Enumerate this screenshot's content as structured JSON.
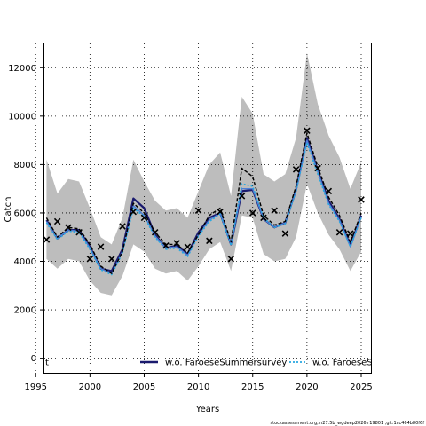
{
  "chart_data": {
    "type": "line",
    "title": "",
    "xlabel": "Years",
    "ylabel": "Catch",
    "xlim": [
      1995.8,
      2025.9
    ],
    "ylim": [
      -600,
      13000
    ],
    "x_ticks": [
      "1995",
      "2000",
      "2005",
      "2010",
      "2015",
      "2020",
      "2025"
    ],
    "y_ticks": [
      "0",
      "2000",
      "4000",
      "6000",
      "8000",
      "10000",
      "12000"
    ],
    "grid": true,
    "legend_position": "bottom",
    "legend": [
      {
        "label": "t",
        "color": "#000000",
        "style": "solid"
      },
      {
        "label": "w.o. FaroeseSummersurvey",
        "color": "#1a1a6e",
        "style": "solid"
      },
      {
        "label": "w.o. FaroeseSp",
        "color": "#29a8e0",
        "style": "dotted"
      }
    ],
    "x": [
      1996,
      1997,
      1998,
      1999,
      2000,
      2001,
      2002,
      2003,
      2004,
      2005,
      2006,
      2007,
      2008,
      2009,
      2010,
      2011,
      2012,
      2013,
      2014,
      2015,
      2016,
      2017,
      2018,
      2019,
      2020,
      2021,
      2022,
      2023,
      2024,
      2025
    ],
    "band": {
      "upper": [
        8200,
        6800,
        7400,
        7300,
        6200,
        5000,
        4700,
        5800,
        8200,
        7300,
        6500,
        6100,
        6200,
        5800,
        6900,
        8000,
        8500,
        6700,
        10800,
        10100,
        7600,
        7300,
        7600,
        9100,
        12600,
        10500,
        9200,
        8300,
        7000,
        8100
      ],
      "lower": [
        4100,
        3700,
        4100,
        4000,
        3200,
        2700,
        2600,
        3400,
        4700,
        4400,
        3700,
        3500,
        3600,
        3200,
        3800,
        4500,
        4800,
        3600,
        5900,
        5800,
        4300,
        4000,
        4100,
        5000,
        7200,
        6000,
        5100,
        4500,
        3600,
        4400
      ]
    },
    "series": [
      {
        "name": "",
        "color": "#000000",
        "style": "dashed",
        "values": [
          5800,
          5000,
          5400,
          5350,
          4700,
          3800,
          3500,
          4400,
          6400,
          6000,
          5200,
          4700,
          4700,
          4350,
          5100,
          5900,
          6200,
          4800,
          7850,
          7500,
          5900,
          5500,
          5650,
          7100,
          9300,
          7900,
          6650,
          5900,
          4800,
          6000
        ]
      },
      {
        "name": "w.o. FaroeseSummersurvey",
        "color": "#1a1a6e",
        "style": "solid",
        "values": [
          5700,
          4950,
          5300,
          5300,
          4600,
          3700,
          3600,
          4500,
          6600,
          6200,
          5100,
          4550,
          4650,
          4300,
          5200,
          5800,
          6000,
          4700,
          6900,
          6950,
          5750,
          5400,
          5600,
          6950,
          9100,
          7750,
          6500,
          5750,
          4650,
          5900
        ]
      },
      {
        "name": "w.o. FaroeseSp",
        "color": "#29a8e0",
        "style": "dotted",
        "values": [
          5600,
          4900,
          5250,
          5200,
          4500,
          3650,
          3450,
          4350,
          6200,
          5850,
          5000,
          4500,
          4550,
          4200,
          5050,
          5650,
          5950,
          4650,
          7200,
          7100,
          5800,
          5400,
          5550,
          6900,
          8900,
          7600,
          6350,
          5650,
          4600,
          5800
        ]
      },
      {
        "name": "",
        "color": "#4f7fd6",
        "style": "solid",
        "values": [
          5650,
          4950,
          5300,
          5250,
          4550,
          3700,
          3500,
          4400,
          6300,
          5900,
          5050,
          4550,
          4600,
          4250,
          5100,
          5700,
          6000,
          4700,
          7000,
          7000,
          5750,
          5400,
          5600,
          6900,
          9000,
          7700,
          6400,
          5700,
          4600,
          5850
        ]
      }
    ],
    "observations": {
      "x": [
        1996,
        1997,
        1998,
        1999,
        2000,
        2001,
        2002,
        2003,
        2004,
        2005,
        2006,
        2007,
        2008,
        2009,
        2010,
        2011,
        2012,
        2013,
        2014,
        2015,
        2016,
        2017,
        2018,
        2019,
        2020,
        2021,
        2022,
        2023,
        2024,
        2025
      ],
      "y": [
        4900,
        5650,
        5400,
        5200,
        4100,
        4600,
        4100,
        5450,
        6050,
        5800,
        5200,
        4650,
        4750,
        4600,
        6100,
        4850,
        6050,
        4100,
        6700,
        6000,
        5800,
        6100,
        5150,
        7800,
        9400,
        7850,
        6900,
        5200,
        5150,
        6550
      ]
    }
  },
  "footer": {
    "source": "stockassessment.org,ln27.5b_wgdeep2026.r19801 ,git:1cc464b80f6f"
  }
}
